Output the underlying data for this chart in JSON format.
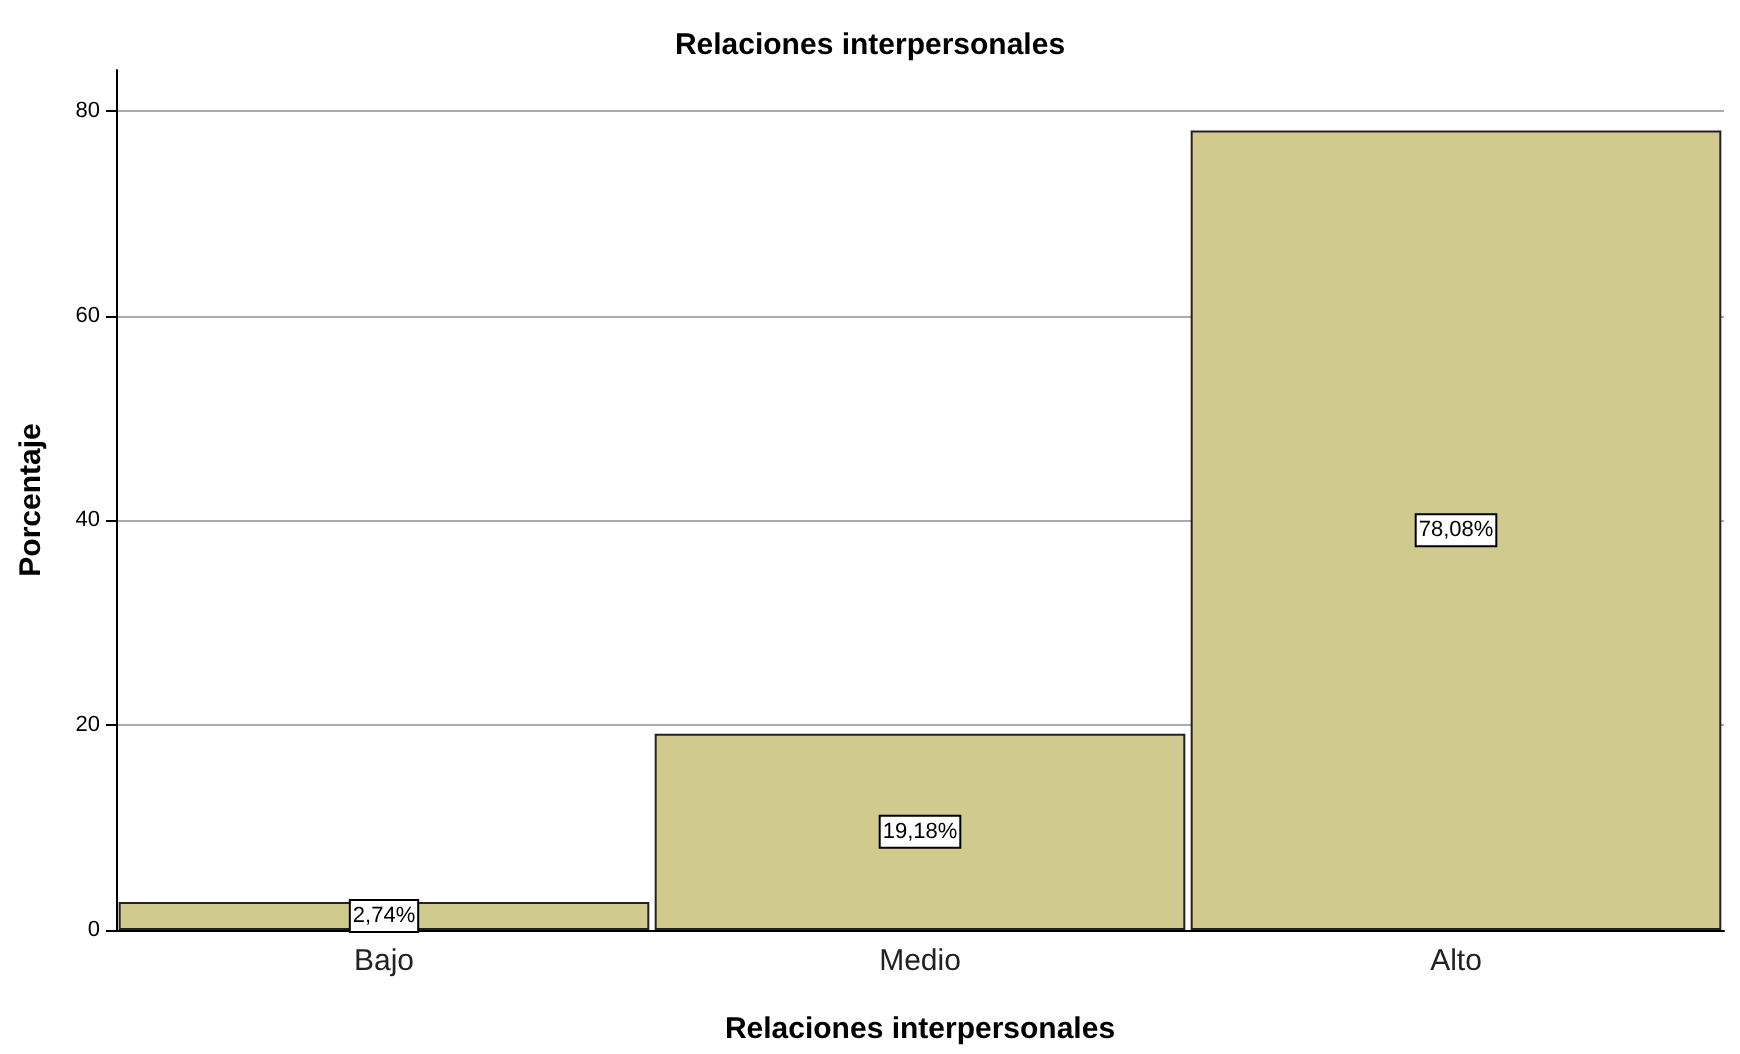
{
  "chart_data": {
    "type": "bar",
    "title": "Relaciones interpersonales",
    "xlabel": "Relaciones interpersonales",
    "ylabel": "Porcentaje",
    "categories": [
      "Bajo",
      "Medio",
      "Alto"
    ],
    "values": [
      2.74,
      19.18,
      78.08
    ],
    "value_labels": [
      "2,74%",
      "19,18%",
      "78,08%"
    ],
    "color": "#d0ca8e",
    "ylim": [
      0,
      84
    ],
    "yticks": [
      0,
      20,
      40,
      60,
      80
    ],
    "grid": "y"
  }
}
